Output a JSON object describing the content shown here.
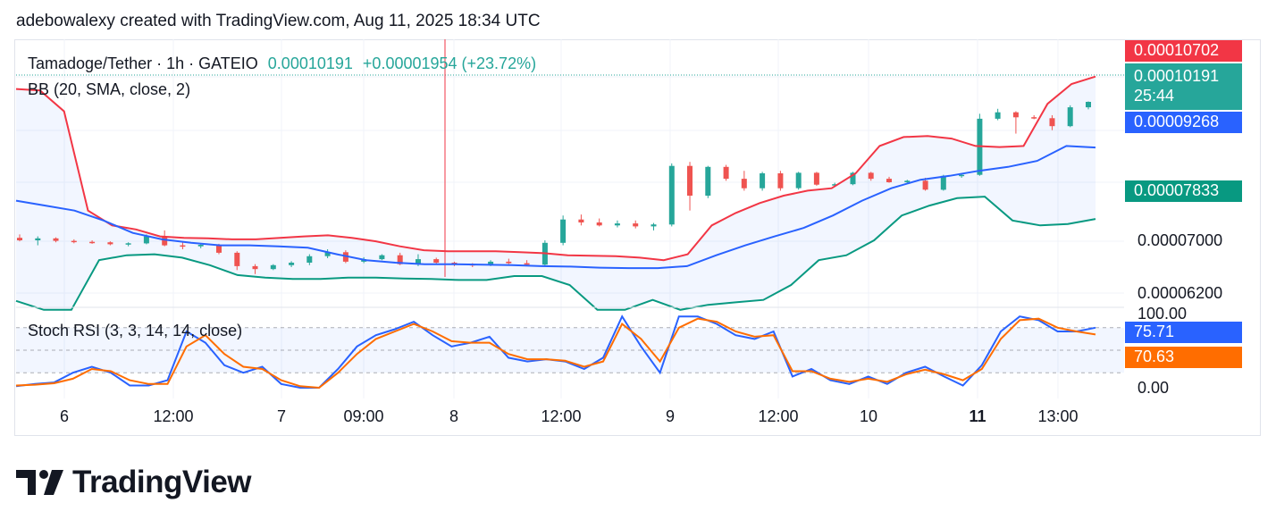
{
  "header": {
    "text": "adebowalexy created with TradingView.com, Aug 11, 2025 18:34 UTC"
  },
  "legend": {
    "symbol": "Tamadoge/Tether · 1h · GATEIO",
    "price": "0.00010191",
    "change": "+0.00001954 (+23.72%)",
    "bb": "BB (20, SMA, close, 2)",
    "stoch": "Stoch RSI (3, 3, 14, 14, close)"
  },
  "price_badges": {
    "upper": "0.00010702",
    "last": "0.00010191",
    "countdown": "25:44",
    "basis": "0.00009268",
    "lower": "0.00007833"
  },
  "price_axis": [
    "0.00007000",
    "0.00006200"
  ],
  "stoch_axis": {
    "top": "100.00",
    "bottom": "0.00",
    "k": "75.71",
    "d": "70.63"
  },
  "time_axis": [
    {
      "label": "6",
      "bold": false
    },
    {
      "label": "12:00",
      "bold": false
    },
    {
      "label": "7",
      "bold": false
    },
    {
      "label": "09:00",
      "bold": false
    },
    {
      "label": "8",
      "bold": false
    },
    {
      "label": "12:00",
      "bold": false
    },
    {
      "label": "9",
      "bold": false
    },
    {
      "label": "12:00",
      "bold": false
    },
    {
      "label": "10",
      "bold": false
    },
    {
      "label": "11",
      "bold": true
    },
    {
      "label": "13:00",
      "bold": false
    }
  ],
  "brand": {
    "name": "TradingView"
  },
  "colors": {
    "up": "#26a69a",
    "down": "#ef5350",
    "bb_upper": "#f23645",
    "bb_basis": "#2962ff",
    "bb_lower": "#089981",
    "stoch_k": "#2962ff",
    "stoch_d": "#ff6d00",
    "crosshair": "#f23645"
  },
  "chart_data": [
    {
      "type": "candlestick",
      "title": "Tamadoge/Tether · 1h · GATEIO",
      "yrange": [
        6.05e-05,
        0.0001145
      ],
      "candles_sampled": [
        {
          "o": 7.45e-05,
          "h": 7.52e-05,
          "l": 7.38e-05,
          "c": 7.4e-05
        },
        {
          "o": 7.4e-05,
          "h": 7.48e-05,
          "l": 7.3e-05,
          "c": 7.44e-05
        },
        {
          "o": 7.44e-05,
          "h": 7.46e-05,
          "l": 7.36e-05,
          "c": 7.39e-05
        },
        {
          "o": 7.39e-05,
          "h": 7.42e-05,
          "l": 7.34e-05,
          "c": 7.37e-05
        },
        {
          "o": 7.37e-05,
          "h": 7.4e-05,
          "l": 7.33e-05,
          "c": 7.36e-05
        },
        {
          "o": 7.36e-05,
          "h": 7.38e-05,
          "l": 7.3e-05,
          "c": 7.32e-05
        },
        {
          "o": 7.32e-05,
          "h": 7.36e-05,
          "l": 7.28e-05,
          "c": 7.34e-05
        },
        {
          "o": 7.34e-05,
          "h": 7.52e-05,
          "l": 7.32e-05,
          "c": 7.48e-05
        },
        {
          "o": 7.48e-05,
          "h": 7.6e-05,
          "l": 7.28e-05,
          "c": 7.3e-05
        },
        {
          "o": 7.3e-05,
          "h": 7.36e-05,
          "l": 7.22e-05,
          "c": 7.28e-05
        },
        {
          "o": 7.28e-05,
          "h": 7.34e-05,
          "l": 7.24e-05,
          "c": 7.31e-05
        },
        {
          "o": 7.31e-05,
          "h": 7.33e-05,
          "l": 7.12e-05,
          "c": 7.15e-05
        },
        {
          "o": 7.15e-05,
          "h": 7.18e-05,
          "l": 6.8e-05,
          "c": 6.88e-05
        },
        {
          "o": 6.88e-05,
          "h": 6.92e-05,
          "l": 6.72e-05,
          "c": 6.82e-05
        },
        {
          "o": 6.82e-05,
          "h": 6.92e-05,
          "l": 6.8e-05,
          "c": 6.9e-05
        },
        {
          "o": 6.9e-05,
          "h": 6.98e-05,
          "l": 6.86e-05,
          "c": 6.95e-05
        },
        {
          "o": 6.95e-05,
          "h": 7.12e-05,
          "l": 6.9e-05,
          "c": 7.08e-05
        },
        {
          "o": 7.08e-05,
          "h": 7.22e-05,
          "l": 7.04e-05,
          "c": 7.16e-05
        },
        {
          "o": 7.16e-05,
          "h": 7.2e-05,
          "l": 6.94e-05,
          "c": 6.97e-05
        },
        {
          "o": 6.97e-05,
          "h": 7.06e-05,
          "l": 6.94e-05,
          "c": 7.02e-05
        },
        {
          "o": 7.02e-05,
          "h": 7.12e-05,
          "l": 7e-05,
          "c": 7.1e-05
        },
        {
          "o": 7.1e-05,
          "h": 7.15e-05,
          "l": 6.9e-05,
          "c": 6.92e-05
        },
        {
          "o": 6.92e-05,
          "h": 7.12e-05,
          "l": 6.88e-05,
          "c": 7.02e-05
        },
        {
          "o": 7.02e-05,
          "h": 7.05e-05,
          "l": 6.92e-05,
          "c": 6.95e-05
        },
        {
          "o": 6.95e-05,
          "h": 6.97e-05,
          "l": 6.88e-05,
          "c": 6.92e-05
        },
        {
          "o": 6.92e-05,
          "h": 6.94e-05,
          "l": 6.86e-05,
          "c": 6.9e-05
        },
        {
          "o": 6.9e-05,
          "h": 7e-05,
          "l": 6.88e-05,
          "c": 6.97e-05
        },
        {
          "o": 6.97e-05,
          "h": 7.03e-05,
          "l": 6.92e-05,
          "c": 6.94e-05
        },
        {
          "o": 6.94e-05,
          "h": 7e-05,
          "l": 6.9e-05,
          "c": 6.91e-05
        },
        {
          "o": 6.91e-05,
          "h": 7.4e-05,
          "l": 6.88e-05,
          "c": 7.35e-05
        },
        {
          "o": 7.35e-05,
          "h": 7.9e-05,
          "l": 7.3e-05,
          "c": 7.82e-05
        },
        {
          "o": 7.82e-05,
          "h": 7.92e-05,
          "l": 7.7e-05,
          "c": 7.76e-05
        },
        {
          "o": 7.76e-05,
          "h": 7.84e-05,
          "l": 7.68e-05,
          "c": 7.7e-05
        },
        {
          "o": 7.7e-05,
          "h": 7.8e-05,
          "l": 7.66e-05,
          "c": 7.74e-05
        },
        {
          "o": 7.74e-05,
          "h": 7.8e-05,
          "l": 7.64e-05,
          "c": 7.68e-05
        },
        {
          "o": 7.68e-05,
          "h": 7.75e-05,
          "l": 7.6e-05,
          "c": 7.72e-05
        },
        {
          "o": 7.72e-05,
          "h": 8.95e-05,
          "l": 7.68e-05,
          "c": 8.9e-05
        },
        {
          "o": 8.9e-05,
          "h": 8.98e-05,
          "l": 8e-05,
          "c": 8.3e-05
        },
        {
          "o": 8.3e-05,
          "h": 8.9e-05,
          "l": 8.25e-05,
          "c": 8.88e-05
        },
        {
          "o": 8.88e-05,
          "h": 8.92e-05,
          "l": 8.6e-05,
          "c": 8.64e-05
        },
        {
          "o": 8.64e-05,
          "h": 8.8e-05,
          "l": 8.4e-05,
          "c": 8.45e-05
        },
        {
          "o": 8.45e-05,
          "h": 8.78e-05,
          "l": 8.4e-05,
          "c": 8.75e-05
        },
        {
          "o": 8.75e-05,
          "h": 8.8e-05,
          "l": 8.4e-05,
          "c": 8.45e-05
        },
        {
          "o": 8.45e-05,
          "h": 8.78e-05,
          "l": 8.42e-05,
          "c": 8.76e-05
        },
        {
          "o": 8.76e-05,
          "h": 8.78e-05,
          "l": 8.5e-05,
          "c": 8.52e-05
        },
        {
          "o": 8.52e-05,
          "h": 8.56e-05,
          "l": 8.48e-05,
          "c": 8.53e-05
        },
        {
          "o": 8.53e-05,
          "h": 8.78e-05,
          "l": 8.51e-05,
          "c": 8.76e-05
        },
        {
          "o": 8.76e-05,
          "h": 8.78e-05,
          "l": 8.6e-05,
          "c": 8.64e-05
        },
        {
          "o": 8.64e-05,
          "h": 8.68e-05,
          "l": 8.56e-05,
          "c": 8.57e-05
        },
        {
          "o": 8.57e-05,
          "h": 8.62e-05,
          "l": 8.55e-05,
          "c": 8.6e-05
        },
        {
          "o": 8.6e-05,
          "h": 8.66e-05,
          "l": 8.4e-05,
          "c": 8.42e-05
        },
        {
          "o": 8.42e-05,
          "h": 8.72e-05,
          "l": 8.4e-05,
          "c": 8.7e-05
        },
        {
          "o": 8.7e-05,
          "h": 8.74e-05,
          "l": 8.66e-05,
          "c": 8.72e-05
        },
        {
          "o": 8.72e-05,
          "h": 9.95e-05,
          "l": 8.7e-05,
          "c": 9.85e-05
        },
        {
          "o": 9.85e-05,
          "h": 0.0001005,
          "l": 9.82e-05,
          "c": 9.98e-05
        },
        {
          "o": 9.98e-05,
          "h": 0.0001,
          "l": 9.55e-05,
          "c": 9.88e-05
        },
        {
          "o": 9.88e-05,
          "h": 9.92e-05,
          "l": 9.84e-05,
          "c": 9.86e-05
        },
        {
          "o": 9.86e-05,
          "h": 9.92e-05,
          "l": 9.62e-05,
          "c": 9.7e-05
        },
        {
          "o": 9.7e-05,
          "h": 0.0001012,
          "l": 9.68e-05,
          "c": 0.0001008
        },
        {
          "o": 0.0001008,
          "h": 0.000102,
          "l": 0.0001004,
          "c": 0.0001019
        }
      ]
    },
    {
      "type": "line",
      "title": "BB (20, SMA, close, 2)",
      "series": [
        {
          "name": "upper",
          "values": [
            0.0001045,
            0.0001042,
            0.0001,
            8e-05,
            7.7e-05,
            7.62e-05,
            7.48e-05,
            7.45e-05,
            7.44e-05,
            7.42e-05,
            7.42e-05,
            7.45e-05,
            7.48e-05,
            7.5e-05,
            7.45e-05,
            7.38e-05,
            7.28e-05,
            7.2e-05,
            7.18e-05,
            7.18e-05,
            7.18e-05,
            7.16e-05,
            7.14e-05,
            7.1e-05,
            7.09e-05,
            7.08e-05,
            7.05e-05,
            7e-05,
            7.12e-05,
            7.7e-05,
            7.95e-05,
            8.15e-05,
            8.3e-05,
            8.4e-05,
            8.45e-05,
            8.75e-05,
            9.3e-05,
            9.48e-05,
            9.5e-05,
            9.45e-05,
            9.3e-05,
            9.28e-05,
            9.3e-05,
            0.0001015,
            0.0001055,
            0.000107
          ]
        },
        {
          "name": "basis",
          "values": [
            8.2e-05,
            8.1e-05,
            8e-05,
            7.8e-05,
            7.55e-05,
            7.42e-05,
            7.35e-05,
            7.3e-05,
            7.3e-05,
            7.28e-05,
            7.25e-05,
            7.12e-05,
            7e-05,
            6.95e-05,
            6.92e-05,
            6.92e-05,
            6.91e-05,
            6.9e-05,
            6.88e-05,
            6.87e-05,
            6.85e-05,
            6.84e-05,
            6.84e-05,
            6.88e-05,
            7.1e-05,
            7.3e-05,
            7.48e-05,
            7.65e-05,
            7.9e-05,
            8.2e-05,
            8.45e-05,
            8.62e-05,
            8.7e-05,
            8.8e-05,
            8.88e-05,
            9e-05,
            9.3e-05,
            9.27e-05
          ]
        },
        {
          "name": "lower",
          "values": [
            6.18e-05,
            6e-05,
            6e-05,
            7e-05,
            7.1e-05,
            7.12e-05,
            7.05e-05,
            6.9e-05,
            6.7e-05,
            6.65e-05,
            6.62e-05,
            6.62e-05,
            6.65e-05,
            6.65e-05,
            6.63e-05,
            6.62e-05,
            6.6e-05,
            6.6e-05,
            6.68e-05,
            6.68e-05,
            6.5e-05,
            6e-05,
            6e-05,
            6.2e-05,
            6e-05,
            6.1e-05,
            6.15e-05,
            6.2e-05,
            6.5e-05,
            7e-05,
            7.1e-05,
            7.4e-05,
            7.9e-05,
            8.1e-05,
            8.25e-05,
            8.28e-05,
            7.8e-05,
            7.7e-05,
            7.73e-05,
            7.83e-05
          ]
        }
      ]
    },
    {
      "type": "line",
      "title": "Stoch RSI (3, 3, 14, 14, close)",
      "ylim": [
        0,
        100
      ],
      "series": [
        {
          "name": "K",
          "values": [
            2,
            5,
            7,
            20,
            28,
            20,
            3,
            3,
            10,
            75,
            60,
            30,
            20,
            28,
            5,
            0,
            0,
            25,
            55,
            70,
            78,
            88,
            70,
            55,
            60,
            68,
            40,
            35,
            38,
            35,
            25,
            40,
            95,
            55,
            20,
            95,
            95,
            85,
            70,
            65,
            75,
            15,
            25,
            10,
            5,
            15,
            5,
            20,
            28,
            15,
            3,
            30,
            75,
            95,
            90,
            75,
            75,
            80
          ]
        },
        {
          "name": "D",
          "values": [
            3,
            4,
            6,
            12,
            25,
            22,
            10,
            5,
            5,
            55,
            70,
            45,
            28,
            25,
            10,
            2,
            0,
            20,
            45,
            65,
            75,
            85,
            75,
            62,
            60,
            60,
            45,
            38,
            38,
            36,
            28,
            35,
            85,
            65,
            35,
            80,
            92,
            88,
            75,
            68,
            70,
            22,
            22,
            12,
            8,
            12,
            8,
            18,
            24,
            18,
            10,
            25,
            65,
            90,
            92,
            80,
            75,
            71
          ]
        }
      ]
    }
  ]
}
